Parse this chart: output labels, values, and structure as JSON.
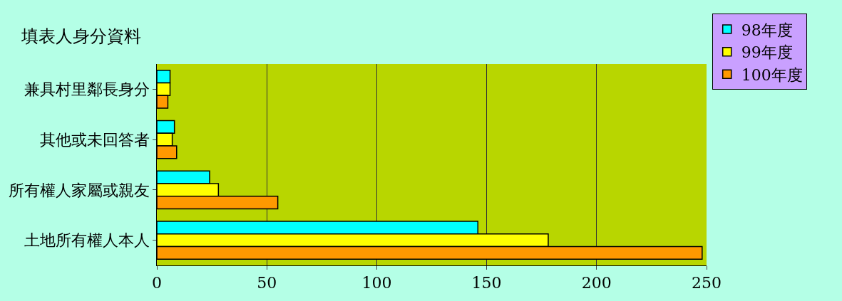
{
  "chart_data": {
    "type": "bar",
    "orientation": "horizontal",
    "title": "填表人身分資料",
    "categories": [
      "兼具村里鄰長身分",
      "其他或未回答者",
      "所有權人家屬或親友",
      "土地所有權人本人"
    ],
    "series": [
      {
        "name": "98年度",
        "color": "#00ffff",
        "values": [
          6,
          8,
          24,
          146
        ]
      },
      {
        "name": "99年度",
        "color": "#ffff00",
        "values": [
          6,
          7,
          28,
          178
        ]
      },
      {
        "name": "100年度",
        "color": "#ff9900",
        "values": [
          5,
          9,
          55,
          248
        ]
      }
    ],
    "xlim": [
      0,
      250
    ],
    "xticks": [
      0,
      50,
      100,
      150,
      200,
      250
    ],
    "grid": "x",
    "legend": "top right"
  }
}
